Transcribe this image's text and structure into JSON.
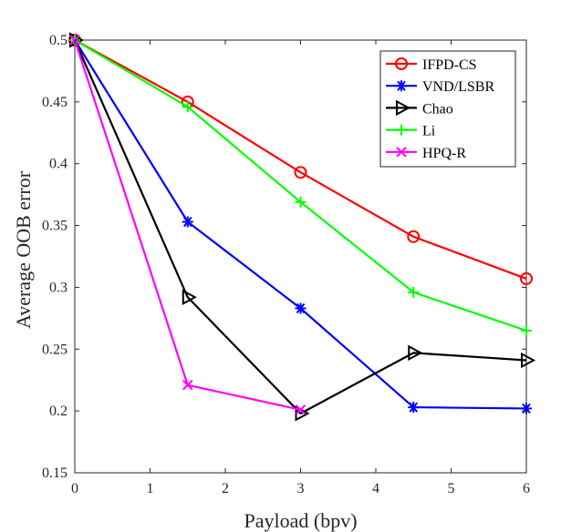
{
  "chart_data": {
    "type": "line",
    "title": "",
    "xlabel": "Payload (bpv)",
    "ylabel": "Average OOB error",
    "xlim": [
      0,
      6
    ],
    "ylim": [
      0.15,
      0.5
    ],
    "xticks": [
      0,
      1,
      2,
      3,
      4,
      5,
      6
    ],
    "yticks": [
      0.15,
      0.2,
      0.25,
      0.3,
      0.35,
      0.4,
      0.45,
      0.5
    ],
    "xtick_labels": [
      "0",
      "1",
      "2",
      "3",
      "4",
      "5",
      "6"
    ],
    "ytick_labels": [
      "0.15",
      "0.2",
      "0.25",
      "0.3",
      "0.35",
      "0.4",
      "0.45",
      "0.5"
    ],
    "grid": false,
    "legend_position": "top-right",
    "series": [
      {
        "name": "IFPD-CS",
        "color": "#ff0000",
        "marker": "circle",
        "x": [
          0,
          1.5,
          3,
          4.5,
          6
        ],
        "values": [
          0.5,
          0.45,
          0.393,
          0.341,
          0.307
        ]
      },
      {
        "name": "VND/LSBR",
        "color": "#0000ff",
        "marker": "asterisk",
        "x": [
          0,
          1.5,
          3,
          4.5,
          6
        ],
        "values": [
          0.5,
          0.353,
          0.283,
          0.203,
          0.202
        ]
      },
      {
        "name": "Chao",
        "color": "#000000",
        "marker": "triangle-right",
        "x": [
          0,
          1.5,
          3,
          4.5,
          6
        ],
        "values": [
          0.5,
          0.292,
          0.198,
          0.247,
          0.241
        ]
      },
      {
        "name": "Li",
        "color": "#00ff00",
        "marker": "plus",
        "x": [
          0,
          1.5,
          3,
          4.5,
          6
        ],
        "values": [
          0.5,
          0.446,
          0.369,
          0.296,
          0.265
        ]
      },
      {
        "name": "HPQ-R",
        "color": "#ff00ff",
        "marker": "cross",
        "x": [
          0,
          1.5,
          3
        ],
        "values": [
          0.5,
          0.221,
          0.201
        ]
      }
    ]
  }
}
